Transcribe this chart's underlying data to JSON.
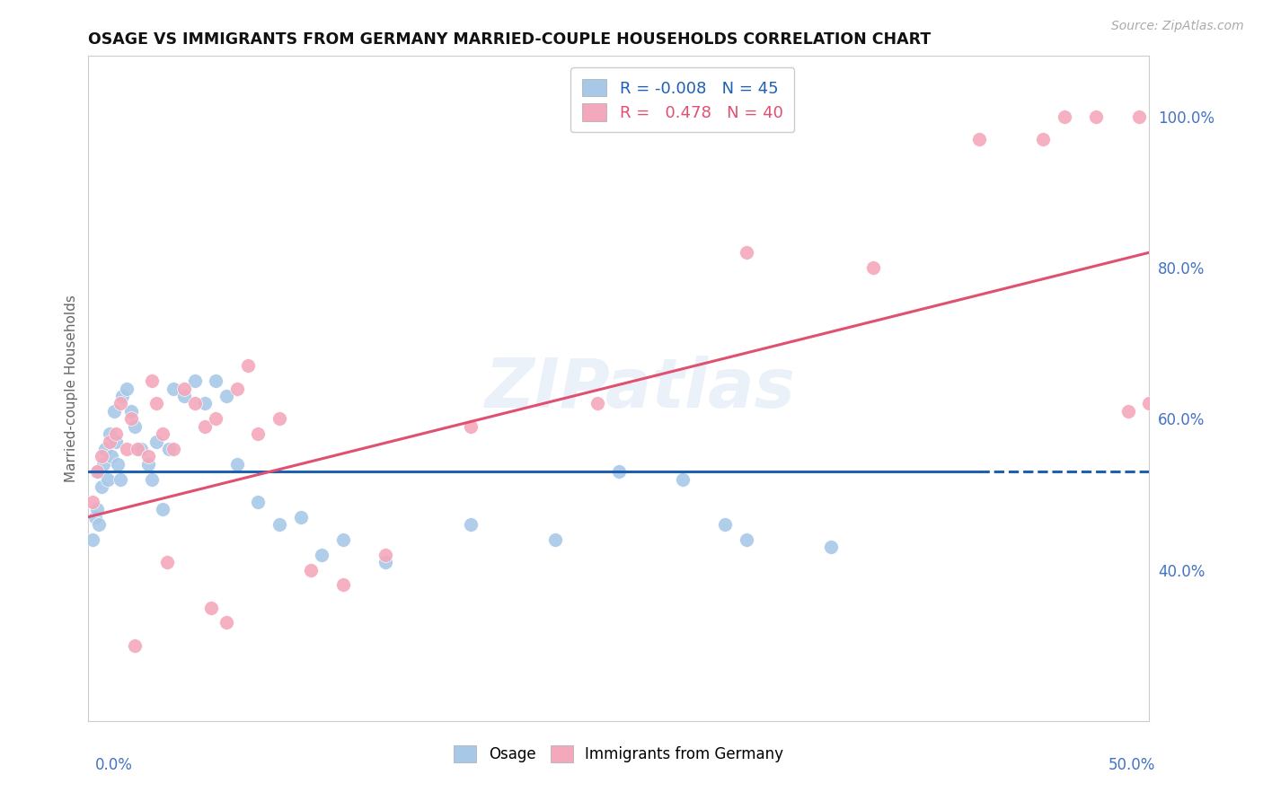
{
  "title": "OSAGE VS IMMIGRANTS FROM GERMANY MARRIED-COUPLE HOUSEHOLDS CORRELATION CHART",
  "source": "Source: ZipAtlas.com",
  "ylabel": "Married-couple Households",
  "right_yticks": [
    40.0,
    60.0,
    80.0,
    100.0
  ],
  "blue_color": "#a8c8e8",
  "pink_color": "#f4a8bc",
  "blue_line_color": "#2060b0",
  "pink_line_color": "#e05070",
  "watermark": "ZIPatlas",
  "osage_x": [
    0.2,
    0.3,
    0.4,
    0.5,
    0.5,
    0.6,
    0.7,
    0.8,
    0.9,
    1.0,
    1.1,
    1.2,
    1.3,
    1.4,
    1.5,
    1.6,
    1.8,
    2.0,
    2.2,
    2.5,
    2.8,
    3.0,
    3.2,
    3.5,
    3.8,
    4.0,
    4.5,
    5.0,
    5.5,
    6.0,
    6.5,
    7.0,
    8.0,
    9.0,
    10.0,
    11.0,
    12.0,
    14.0,
    18.0,
    22.0,
    25.0,
    28.0,
    30.0,
    35.0,
    31.0
  ],
  "osage_y": [
    44.0,
    47.0,
    48.0,
    46.0,
    53.0,
    51.0,
    54.0,
    56.0,
    52.0,
    58.0,
    55.0,
    61.0,
    57.0,
    54.0,
    52.0,
    63.0,
    64.0,
    61.0,
    59.0,
    56.0,
    54.0,
    52.0,
    57.0,
    48.0,
    56.0,
    64.0,
    63.0,
    65.0,
    62.0,
    65.0,
    63.0,
    54.0,
    49.0,
    46.0,
    47.0,
    42.0,
    44.0,
    41.0,
    46.0,
    44.0,
    53.0,
    52.0,
    46.0,
    43.0,
    44.0
  ],
  "germany_x": [
    0.2,
    0.4,
    0.6,
    1.0,
    1.3,
    1.5,
    1.8,
    2.0,
    2.3,
    2.8,
    3.0,
    3.2,
    3.5,
    4.0,
    4.5,
    5.0,
    5.5,
    6.0,
    7.0,
    7.5,
    8.0,
    9.0,
    10.5,
    12.0,
    14.0,
    18.0,
    24.0,
    31.0,
    37.0,
    42.0,
    45.0,
    46.0,
    47.5,
    49.0,
    49.5,
    50.0,
    2.2,
    3.7,
    5.8,
    6.5
  ],
  "germany_y": [
    49.0,
    53.0,
    55.0,
    57.0,
    58.0,
    62.0,
    56.0,
    60.0,
    56.0,
    55.0,
    65.0,
    62.0,
    58.0,
    56.0,
    64.0,
    62.0,
    59.0,
    60.0,
    64.0,
    67.0,
    58.0,
    60.0,
    40.0,
    38.0,
    42.0,
    59.0,
    62.0,
    82.0,
    80.0,
    97.0,
    97.0,
    100.0,
    100.0,
    61.0,
    100.0,
    62.0,
    30.0,
    41.0,
    35.0,
    33.0
  ],
  "xmin": 0.0,
  "xmax": 50.0,
  "ymin": 20.0,
  "ymax": 108.0,
  "grid_color": "#ddddee",
  "background_color": "#ffffff",
  "blue_trend_y": 53.0,
  "pink_trend_x0": 0.0,
  "pink_trend_x1": 50.0,
  "pink_trend_y0": 47.0,
  "pink_trend_y1": 82.0
}
